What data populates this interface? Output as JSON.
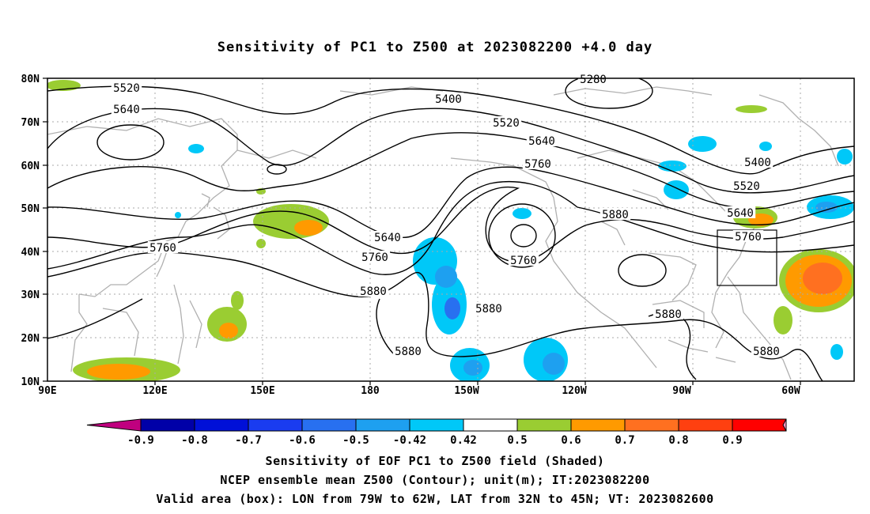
{
  "title": "Sensitivity of PC1 to Z500 at 2023082200 +4.0 day",
  "lat_labels": [
    "80N",
    "70N",
    "60N",
    "50N",
    "40N",
    "30N",
    "20N",
    "10N"
  ],
  "lon_labels": [
    "90E",
    "120E",
    "150E",
    "180",
    "150W",
    "120W",
    "90W",
    "60W"
  ],
  "contour_labels": [
    {
      "text": "5520"
    },
    {
      "text": "5640"
    },
    {
      "text": "5400"
    },
    {
      "text": "5280"
    },
    {
      "text": "5520"
    },
    {
      "text": "5640"
    },
    {
      "text": "5760"
    },
    {
      "text": "5400"
    },
    {
      "text": "5520"
    },
    {
      "text": "5640"
    },
    {
      "text": "5760"
    },
    {
      "text": "5880"
    },
    {
      "text": "5760"
    },
    {
      "text": "5640"
    },
    {
      "text": "5760"
    },
    {
      "text": "5760"
    },
    {
      "text": "5880"
    },
    {
      "text": "5880"
    },
    {
      "text": "5880"
    },
    {
      "text": "5880"
    },
    {
      "text": "5880"
    }
  ],
  "colorbar": {
    "colors": [
      "#c0007f",
      "#0000a8",
      "#0010d8",
      "#1a3cf0",
      "#2870f0",
      "#1ea0f0",
      "#00c8f8",
      "#ffffff",
      "#9acd32",
      "#ff9a00",
      "#ff7020",
      "#ff4010",
      "#ff0000",
      "#ff9cc8"
    ],
    "labels": [
      "-0.9",
      "-0.8",
      "-0.7",
      "-0.6",
      "-0.5",
      "-0.42",
      "0.42",
      "0.5",
      "0.6",
      "0.7",
      "0.8",
      "0.9"
    ]
  },
  "captions": [
    "Sensitivity of EOF PC1 to Z500 field (Shaded)",
    "NCEP ensemble mean Z500 (Contour); unit(m); IT:2023082200",
    "Valid area (box): LON from 79W to 62W, LAT from 32N to 45N; VT: 2023082600"
  ]
}
